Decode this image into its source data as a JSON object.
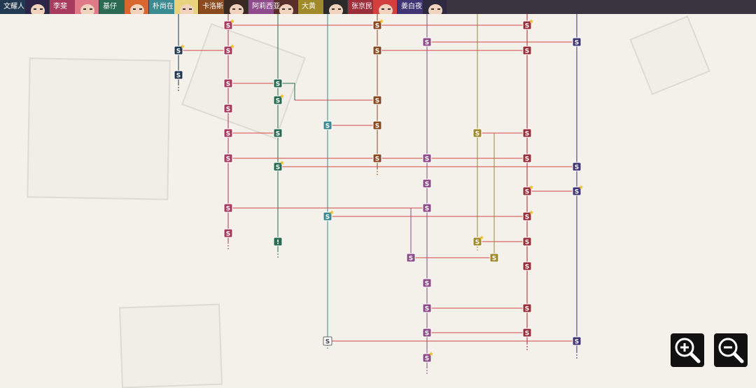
{
  "characters": [
    {
      "id": "c1",
      "name": "文耀人",
      "color": "#213a52",
      "hair": "#2d2547"
    },
    {
      "id": "c2",
      "name": "李斐",
      "color": "#a83a5e",
      "hair": "#e07a88"
    },
    {
      "id": "c3",
      "name": "基仔",
      "color": "#2a6a52",
      "hair": "#d9662e"
    },
    {
      "id": "c4",
      "name": "朴尚在",
      "color": "#3a8a92",
      "hair": "#e8d37e"
    },
    {
      "id": "c5",
      "name": "卡洛斯",
      "color": "#8a4a1e",
      "hair": "#3a2a22"
    },
    {
      "id": "c6",
      "name": "阿莉西亚",
      "color": "#8e4a8a",
      "hair": "#5a2e2a"
    },
    {
      "id": "c7",
      "name": "大黄",
      "color": "#a08a2a",
      "hair": "#2a2a2a"
    },
    {
      "id": "c8",
      "name": "张京民",
      "color": "#9a2f3a",
      "hair": "#d4403e"
    },
    {
      "id": "c9",
      "name": "姜白夜",
      "color": "#3f3575",
      "hair": "#2d2a40"
    }
  ],
  "node_glyph": "S",
  "alert_glyph": "!",
  "zoom": {
    "in_icon": "zoom-in-icon",
    "out_icon": "zoom-out-icon"
  }
}
